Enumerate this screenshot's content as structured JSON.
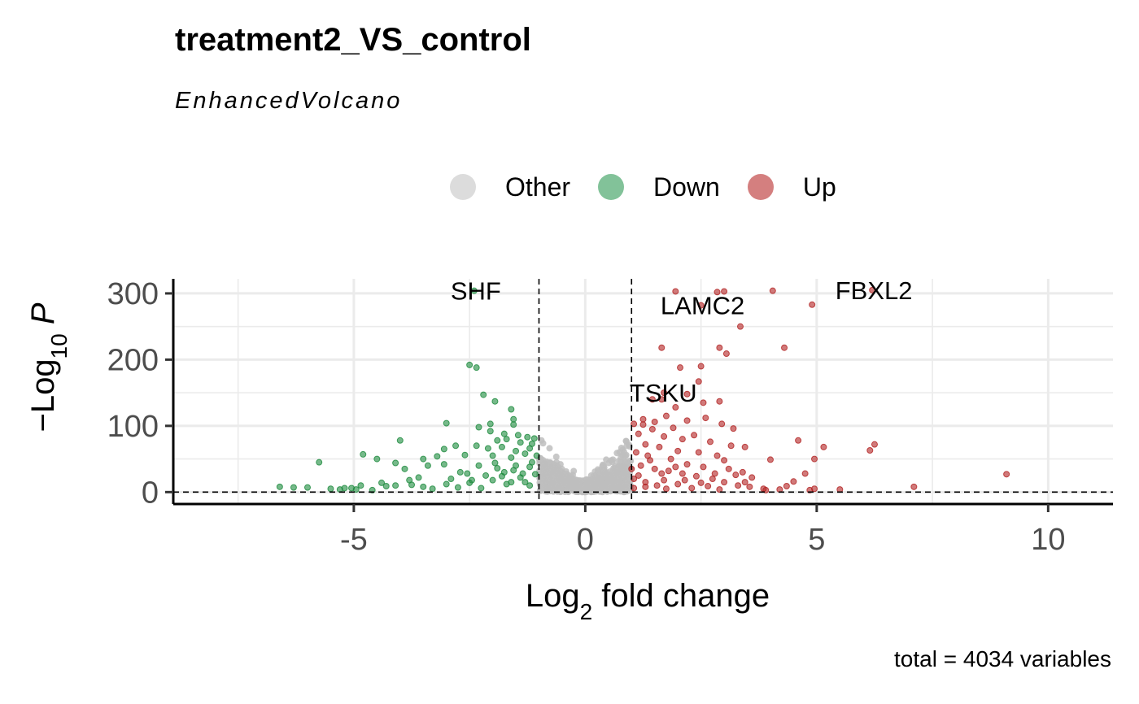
{
  "chart_data": {
    "type": "scatter",
    "title": "treatment2_VS_control",
    "subtitle": "EnhancedVolcano",
    "caption": "total = 4034 variables",
    "xlabel": "Log2 fold change",
    "ylabel": "-Log10 P",
    "xlim": [
      -8.9,
      11.4
    ],
    "ylim": [
      -18,
      322
    ],
    "x_ticks": [
      -5,
      0,
      5,
      10
    ],
    "x_tick_labels": [
      "-5",
      "0",
      "5",
      "10"
    ],
    "y_ticks": [
      0,
      100,
      200,
      300
    ],
    "y_tick_labels": [
      "0",
      "100",
      "200",
      "300"
    ],
    "grid": true,
    "legend_position": "top",
    "cutoffs": {
      "fold_change": [
        -1,
        1
      ],
      "p_value_line": 0
    },
    "colors": {
      "Other": "#bebebe",
      "Down": "#1b8a3c",
      "Up": "#b22222"
    },
    "legend": [
      {
        "name": "Other",
        "color": "#c4c4c4"
      },
      {
        "name": "Down",
        "color": "#2e9a55"
      },
      {
        "name": "Up",
        "color": "#b82a2a"
      }
    ],
    "series": [
      {
        "name": "Down",
        "points": [
          [
            -2.4,
            304
          ],
          [
            -2.5,
            192
          ],
          [
            -2.35,
            188
          ],
          [
            -2.2,
            147
          ],
          [
            -1.95,
            137
          ],
          [
            -1.6,
            125
          ],
          [
            -2.05,
            103
          ],
          [
            -1.55,
            110
          ],
          [
            -1.55,
            102
          ],
          [
            -3.0,
            104
          ],
          [
            -2.3,
            98
          ],
          [
            -2.05,
            92
          ],
          [
            -1.75,
            88
          ],
          [
            -1.45,
            86
          ],
          [
            -1.25,
            83
          ],
          [
            -1.1,
            81
          ],
          [
            -1.7,
            80
          ],
          [
            -1.9,
            78
          ],
          [
            -1.4,
            75
          ],
          [
            -1.15,
            73
          ],
          [
            -4.0,
            78
          ],
          [
            -3.05,
            65
          ],
          [
            -2.8,
            70
          ],
          [
            -2.35,
            70
          ],
          [
            -2.1,
            66
          ],
          [
            -1.8,
            68
          ],
          [
            -1.5,
            62
          ],
          [
            -1.2,
            66
          ],
          [
            -4.8,
            57
          ],
          [
            -4.5,
            50
          ],
          [
            -5.75,
            45
          ],
          [
            -4.1,
            44
          ],
          [
            -3.5,
            50
          ],
          [
            -3.2,
            54
          ],
          [
            -2.6,
            56
          ],
          [
            -2.0,
            55
          ],
          [
            -1.6,
            52
          ],
          [
            -1.3,
            58
          ],
          [
            -1.05,
            55
          ],
          [
            -3.9,
            35
          ],
          [
            -3.4,
            40
          ],
          [
            -3.05,
            42
          ],
          [
            -2.7,
            30
          ],
          [
            -2.3,
            40
          ],
          [
            -1.9,
            36
          ],
          [
            -1.55,
            33
          ],
          [
            -1.2,
            38
          ],
          [
            -5.05,
            6
          ],
          [
            -6.6,
            8
          ],
          [
            -6.3,
            7
          ],
          [
            -6.0,
            7
          ],
          [
            -5.5,
            5
          ],
          [
            -5.3,
            4
          ],
          [
            -4.95,
            4
          ],
          [
            -4.6,
            3
          ],
          [
            -4.3,
            9
          ],
          [
            -4.1,
            10
          ],
          [
            -3.75,
            11
          ],
          [
            -3.5,
            8
          ],
          [
            -3.3,
            5
          ],
          [
            -3.0,
            12
          ],
          [
            -2.75,
            7
          ],
          [
            -2.5,
            14
          ],
          [
            -2.25,
            6
          ],
          [
            -2.0,
            18
          ],
          [
            -1.8,
            24
          ],
          [
            -1.6,
            15
          ],
          [
            -1.4,
            22
          ],
          [
            -1.2,
            10
          ],
          [
            -1.08,
            27
          ],
          [
            -2.9,
            20
          ],
          [
            -2.55,
            28
          ],
          [
            -2.15,
            25
          ],
          [
            -1.75,
            30
          ],
          [
            -1.35,
            28
          ],
          [
            -1.15,
            45
          ],
          [
            -1.3,
            15
          ],
          [
            -1.5,
            40
          ],
          [
            -1.7,
            12
          ],
          [
            -1.95,
            44
          ],
          [
            -2.45,
            18
          ],
          [
            -3.6,
            22
          ],
          [
            -4.4,
            14
          ],
          [
            -4.85,
            10
          ],
          [
            -5.2,
            6
          ],
          [
            -3.8,
            18
          ]
        ]
      },
      {
        "name": "Up",
        "points": [
          [
            6.2,
            305
          ],
          [
            4.05,
            304
          ],
          [
            4.9,
            283
          ],
          [
            1.95,
            303
          ],
          [
            2.85,
            302
          ],
          [
            3.0,
            303
          ],
          [
            2.5,
            282
          ],
          [
            3.35,
            250
          ],
          [
            1.65,
            218
          ],
          [
            2.9,
            218
          ],
          [
            3.05,
            209
          ],
          [
            4.3,
            218
          ],
          [
            2.5,
            190
          ],
          [
            2.05,
            188
          ],
          [
            2.45,
            167
          ],
          [
            1.7,
            150
          ],
          [
            1.45,
            140
          ],
          [
            1.65,
            140
          ],
          [
            2.2,
            148
          ],
          [
            2.9,
            137
          ],
          [
            2.55,
            135
          ],
          [
            1.95,
            128
          ],
          [
            1.25,
            110
          ],
          [
            1.5,
            106
          ],
          [
            1.75,
            115
          ],
          [
            2.2,
            108
          ],
          [
            2.6,
            112
          ],
          [
            2.95,
            103
          ],
          [
            3.2,
            96
          ],
          [
            1.05,
            103
          ],
          [
            1.25,
            102
          ],
          [
            1.45,
            95
          ],
          [
            1.9,
            97
          ],
          [
            2.35,
            86
          ],
          [
            1.15,
            88
          ],
          [
            1.7,
            84
          ],
          [
            2.1,
            80
          ],
          [
            2.7,
            76
          ],
          [
            3.15,
            70
          ],
          [
            3.45,
            68
          ],
          [
            4.0,
            49
          ],
          [
            4.6,
            78
          ],
          [
            5.15,
            68
          ],
          [
            6.15,
            63
          ],
          [
            6.25,
            72
          ],
          [
            4.95,
            50
          ],
          [
            1.3,
            72
          ],
          [
            1.6,
            68
          ],
          [
            2.0,
            62
          ],
          [
            2.45,
            60
          ],
          [
            2.85,
            55
          ],
          [
            3.0,
            48
          ],
          [
            3.4,
            30
          ],
          [
            1.1,
            60
          ],
          [
            1.35,
            55
          ],
          [
            1.85,
            50
          ],
          [
            2.2,
            42
          ],
          [
            2.55,
            38
          ],
          [
            3.25,
            26
          ],
          [
            3.6,
            22
          ],
          [
            1.2,
            40
          ],
          [
            1.5,
            35
          ],
          [
            1.8,
            32
          ],
          [
            2.1,
            28
          ],
          [
            2.4,
            24
          ],
          [
            2.75,
            20
          ],
          [
            3.0,
            15
          ],
          [
            3.3,
            10
          ],
          [
            3.55,
            8
          ],
          [
            3.85,
            5
          ],
          [
            4.2,
            4
          ],
          [
            4.5,
            16
          ],
          [
            4.75,
            28
          ],
          [
            4.95,
            5
          ],
          [
            5.5,
            4
          ],
          [
            7.1,
            8
          ],
          [
            9.1,
            27
          ],
          [
            1.05,
            20
          ],
          [
            1.3,
            15
          ],
          [
            1.55,
            10
          ],
          [
            1.75,
            5
          ],
          [
            2.0,
            12
          ],
          [
            2.3,
            6
          ],
          [
            2.65,
            9
          ],
          [
            2.9,
            4
          ],
          [
            3.9,
            3
          ],
          [
            4.35,
            9
          ],
          [
            4.85,
            3
          ],
          [
            1.0,
            35
          ],
          [
            1.15,
            25
          ],
          [
            1.4,
            48
          ],
          [
            1.65,
            28
          ],
          [
            2.15,
            18
          ],
          [
            2.5,
            14
          ],
          [
            3.1,
            35
          ],
          [
            3.45,
            15
          ],
          [
            1.95,
            38
          ],
          [
            1.3,
            8
          ],
          [
            1.05,
            6
          ],
          [
            2.8,
            28
          ],
          [
            1.7,
            18
          ]
        ]
      }
    ],
    "other_points_note": "",
    "labels": [
      {
        "text": "SHF",
        "x": -2.4,
        "y": 304
      },
      {
        "text": "FBXL2",
        "x": 6.2,
        "y": 305
      },
      {
        "text": "LAMC2",
        "x": 2.5,
        "y": 282
      },
      {
        "text": "TSKU",
        "x": 1.65,
        "y": 150
      }
    ]
  }
}
